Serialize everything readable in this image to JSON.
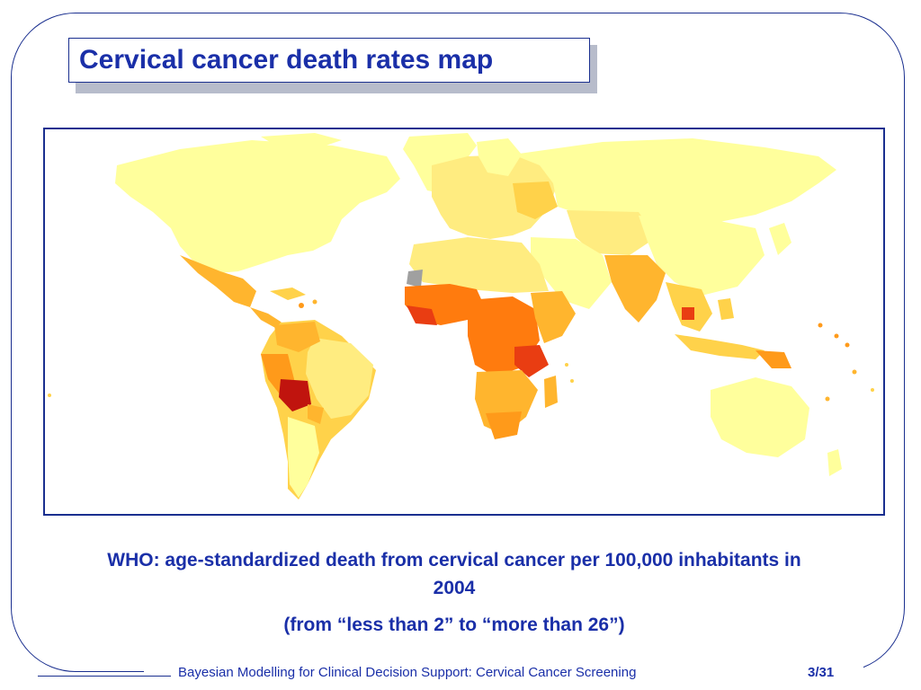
{
  "slide": {
    "title": "Cervical cancer death rates map",
    "caption_line1": "WHO: age-standardized death from cervical cancer per 100,000 inhabitants in 2004",
    "caption_line2": "(from “less than 2” to “more than 26”)",
    "footer_text": "Bayesian Modelling for Clinical Decision Support: Cervical Cancer Screening",
    "page_number": "3/31"
  },
  "map": {
    "type": "choropleth world map",
    "colors": {
      "very_low": "#ffff9c",
      "low": "#ffec80",
      "low_mid": "#ffd24a",
      "mid": "#ffb52e",
      "high_mid": "#ff9a1a",
      "high": "#ff7b0e",
      "very_high": "#e93d12",
      "max": "#c0140e",
      "no_data": "#a0a0a0",
      "ocean": "#ffffff"
    }
  }
}
